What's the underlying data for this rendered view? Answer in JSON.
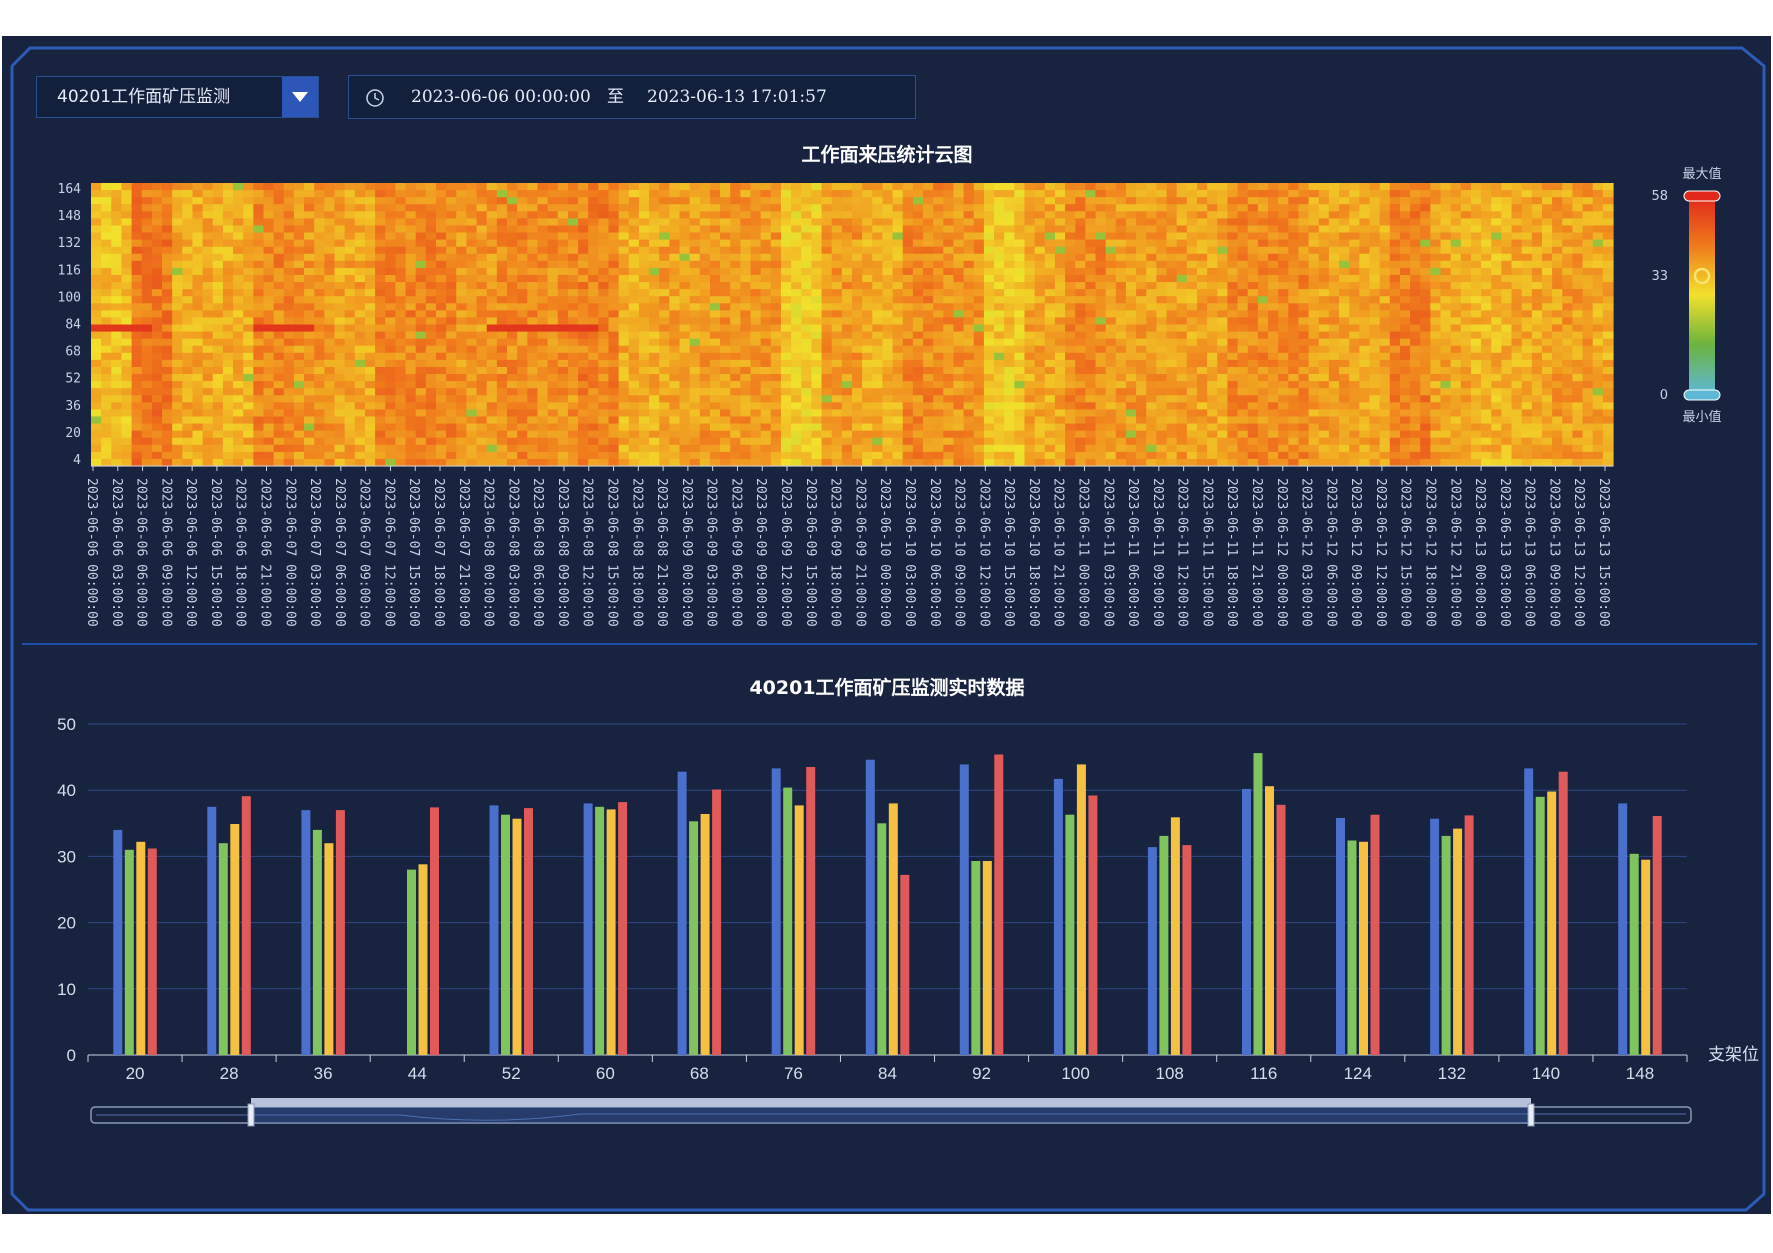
{
  "toolbar": {
    "select_value": "40201工作面矿压监测",
    "date_start": "2023-06-06 00:00:00",
    "date_separator": "至",
    "date_end": "2023-06-13 17:01:57"
  },
  "chart_data": [
    {
      "type": "heatmap",
      "title": "工作面来压统计云图",
      "y_ticks": [
        164,
        148,
        132,
        116,
        100,
        84,
        68,
        52,
        36,
        20,
        4
      ],
      "x_ticks": [
        "2023-06-06 00:00:00",
        "2023-06-06 03:00:00",
        "2023-06-06 06:00:00",
        "2023-06-06 09:00:00",
        "2023-06-06 12:00:00",
        "2023-06-06 15:00:00",
        "2023-06-06 18:00:00",
        "2023-06-06 21:00:00",
        "2023-06-07 00:00:00",
        "2023-06-07 03:00:00",
        "2023-06-07 06:00:00",
        "2023-06-07 09:00:00",
        "2023-06-07 12:00:00",
        "2023-06-07 15:00:00",
        "2023-06-07 18:00:00",
        "2023-06-07 21:00:00",
        "2023-06-08 00:00:00",
        "2023-06-08 03:00:00",
        "2023-06-08 06:00:00",
        "2023-06-08 09:00:00",
        "2023-06-08 12:00:00",
        "2023-06-08 15:00:00",
        "2023-06-08 18:00:00",
        "2023-06-08 21:00:00",
        "2023-06-09 00:00:00",
        "2023-06-09 03:00:00",
        "2023-06-09 06:00:00",
        "2023-06-09 09:00:00",
        "2023-06-09 12:00:00",
        "2023-06-09 15:00:00",
        "2023-06-09 18:00:00",
        "2023-06-09 21:00:00",
        "2023-06-10 00:00:00",
        "2023-06-10 03:00:00",
        "2023-06-10 06:00:00",
        "2023-06-10 09:00:00",
        "2023-06-10 12:00:00",
        "2023-06-10 15:00:00",
        "2023-06-10 18:00:00",
        "2023-06-10 21:00:00",
        "2023-06-11 00:00:00",
        "2023-06-11 03:00:00",
        "2023-06-11 06:00:00",
        "2023-06-11 09:00:00",
        "2023-06-11 12:00:00",
        "2023-06-11 15:00:00",
        "2023-06-11 18:00:00",
        "2023-06-11 21:00:00",
        "2023-06-12 00:00:00",
        "2023-06-12 03:00:00",
        "2023-06-12 06:00:00",
        "2023-06-12 09:00:00",
        "2023-06-12 12:00:00",
        "2023-06-12 15:00:00",
        "2023-06-12 18:00:00",
        "2023-06-12 21:00:00",
        "2023-06-13 00:00:00",
        "2023-06-13 03:00:00",
        "2023-06-13 06:00:00",
        "2023-06-13 09:00:00",
        "2023-06-13 12:00:00",
        "2023-06-13 15:00:00"
      ],
      "visual_map": {
        "max_label": "最大值",
        "min_label": "最小值",
        "max": 58,
        "mid": 33,
        "min": 0,
        "colors": [
          "#5fb8d6",
          "#6cb33f",
          "#f2e12b",
          "#f07a1c",
          "#e0281c"
        ]
      }
    },
    {
      "type": "bar",
      "title": "40201工作面矿压监测实时数据",
      "xlabel": "支架位",
      "ylim": [
        0,
        50
      ],
      "y_ticks": [
        0,
        10,
        20,
        30,
        40,
        50
      ],
      "categories": [
        "20",
        "28",
        "36",
        "44",
        "52",
        "60",
        "68",
        "76",
        "84",
        "92",
        "100",
        "108",
        "116",
        "124",
        "132",
        "140",
        "148"
      ],
      "series": [
        {
          "color": "#4a6fcc",
          "values": [
            34,
            37.5,
            37,
            0,
            37.7,
            38,
            42.8,
            43.3,
            44.6,
            43.9,
            41.7,
            31.4,
            40.2,
            35.8,
            35.7,
            43.3,
            38
          ]
        },
        {
          "color": "#7fc45e",
          "values": [
            31,
            32,
            34,
            28,
            36.3,
            37.5,
            35.3,
            40.4,
            35,
            29.3,
            36.3,
            33.1,
            45.6,
            32.4,
            33.1,
            39,
            30.4
          ]
        },
        {
          "color": "#f4c143",
          "values": [
            32.2,
            34.9,
            32,
            28.8,
            35.7,
            37.1,
            36.4,
            37.7,
            38,
            29.3,
            43.9,
            35.9,
            40.6,
            32.2,
            34.2,
            39.8,
            29.5
          ]
        },
        {
          "color": "#e05a5a",
          "values": [
            31.2,
            39.1,
            37,
            37.4,
            37.3,
            38.2,
            40.1,
            43.5,
            27.2,
            45.4,
            39.2,
            31.7,
            37.8,
            36.3,
            36.2,
            42.8,
            36.1
          ]
        }
      ]
    }
  ]
}
